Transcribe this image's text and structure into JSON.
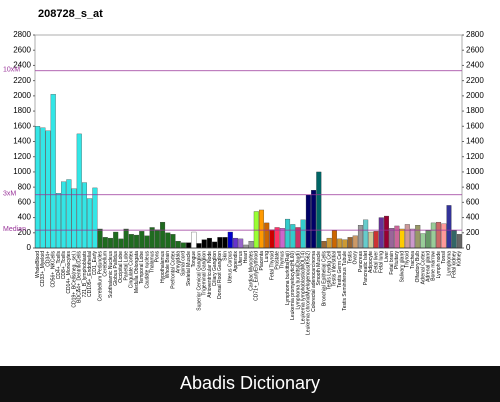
{
  "chart_data": {
    "type": "bar",
    "title": "208728_s_at",
    "caption": "Abadis Dictionary",
    "categories": [
      "WholeBlood",
      "CD33+_Myeloid",
      "CD34+",
      "CD56+_NKCells",
      "CD4+_Tcells",
      "CD8+_Tcells",
      "CD14+_Monocytes",
      "CD19+_BCells(neg._sel.)",
      "BDCA4+_DentriticCells",
      "721_B_lymphoblasts",
      "CD105+_Endothelial",
      "CD1_Early",
      "Cerebellum Peduncles",
      "Cerebellum",
      "Subthalamic Nucleus",
      "Globus Pallidus",
      "Occipital Lobe",
      "Parietal Lobe",
      "Cingulate Cortex",
      "Medulla Oblongata",
      "Temporal Lobe",
      "Caudate nucleus",
      "Thalamus",
      "Pons",
      "Hypothalamus",
      "Whole Brain",
      "Prefrontal Cortex",
      "Amygdala",
      "Spinal cord",
      "Skeletal Muscle",
      "Tongue",
      "Superior Cervical Ganglion",
      "Trigeminal Ganglion",
      "Atrioventricular Node",
      "Ciliary Ganglion",
      "Dorsal Root Ganglion",
      "Skin",
      "Uterus Corpus",
      "Appendix",
      "Uterus",
      "Heart",
      "Cardiac Myocytes",
      "CD71+_EarlyErythroid",
      "Placenta",
      "Lung",
      "Fetal Thyroid",
      "Prostate",
      "Thymus",
      "Lymphoma burkitts(Raji)",
      "Leukemia promyelocytic(HL60)",
      "Lymphoma burkitts(Daudi)",
      "Leukemia lymphoblastic(MOLT4)",
      "Leukemia chronicMyelogenous(K562)",
      "Colorectal adenocarcinoma",
      "Smooth Muscle",
      "Bronchial Epithelial Cells",
      "Testis Leydig Cell",
      "Testis Interstitial",
      "Testis Germ Cell",
      "Testis Seminiferous Tubule",
      "Testis",
      "Ovary",
      "Pancreas",
      "Pancreatic Islet",
      "Adipocyte",
      "Fetal liver",
      "Fetal lung",
      "Liver",
      "Fetal brain",
      "Pituitary",
      "Salivary gland",
      "Thyroid",
      "Trachea",
      "Olfactory Bulb",
      "Adrenal Cortex",
      "Adrenal gland",
      "Bone marrow",
      "Lymph node",
      "Tonsil",
      "Lymphoma",
      "Fetal kidney",
      "Kidney"
    ],
    "values": [
      1600,
      1580,
      1540,
      2020,
      720,
      870,
      900,
      780,
      1500,
      860,
      650,
      790,
      250,
      140,
      130,
      210,
      120,
      250,
      180,
      170,
      220,
      160,
      270,
      240,
      340,
      200,
      180,
      90,
      70,
      70,
      210,
      60,
      110,
      130,
      80,
      140,
      140,
      210,
      130,
      120,
      40,
      90,
      480,
      500,
      330,
      240,
      270,
      260,
      380,
      310,
      270,
      370,
      700,
      760,
      1000,
      90,
      130,
      230,
      120,
      110,
      140,
      160,
      300,
      370,
      210,
      220,
      400,
      420,
      260,
      290,
      250,
      310,
      250,
      300,
      190,
      230,
      330,
      340,
      320,
      560,
      230,
      180
    ],
    "colors": [
      "#33e6e6",
      "#33e6e6",
      "#33e6e6",
      "#33e6e6",
      "#33e6e6",
      "#33e6e6",
      "#33e6e6",
      "#33e6e6",
      "#33e6e6",
      "#33e6e6",
      "#33e6e6",
      "#33e6e6",
      "#1f6b1f",
      "#1f6b1f",
      "#1f6b1f",
      "#1f6b1f",
      "#1f6b1f",
      "#1f6b1f",
      "#1f6b1f",
      "#1f6b1f",
      "#1f6b1f",
      "#1f6b1f",
      "#1f6b1f",
      "#1f6b1f",
      "#1f6b1f",
      "#1f6b1f",
      "#1f6b1f",
      "#1f6b1f",
      "#1f6b1f",
      "#000000",
      "#ffffff",
      "#000000",
      "#000000",
      "#000000",
      "#000000",
      "#000000",
      "#000000",
      "#0000cc",
      "#6633cc",
      "#9966cc",
      "#999999",
      "#999999",
      "#99ff33",
      "#ff9900",
      "#cc6600",
      "#cc0000",
      "#ff3366",
      "#cc66cc",
      "#33cccc",
      "#33cccc",
      "#cc3366",
      "#33cccc",
      "#000066",
      "#000066",
      "#006666",
      "#996633",
      "#cc9933",
      "#cc6600",
      "#cc9933",
      "#cc9933",
      "#996633",
      "#cc9966",
      "#999999",
      "#66cccc",
      "#cccc99",
      "#cc3333",
      "#663399",
      "#990033",
      "#996699",
      "#cc6699",
      "#ffcc00",
      "#cc9999",
      "#cc99cc",
      "#999966",
      "#99cc99",
      "#669966",
      "#99cc99",
      "#cc6666",
      "#ff9999",
      "#333399",
      "#336666",
      "#666666"
    ],
    "reference_lines": [
      {
        "label": "10xM",
        "value": 2330
      },
      {
        "label": "3xM",
        "value": 700
      },
      {
        "label": "Median",
        "value": 235
      }
    ],
    "reference_color": "#993399",
    "ylim": [
      0,
      2800
    ],
    "yticks": [
      0,
      200,
      400,
      600,
      800,
      1000,
      1200,
      1400,
      1600,
      1800,
      2000,
      2200,
      2400,
      2600,
      2800
    ]
  }
}
